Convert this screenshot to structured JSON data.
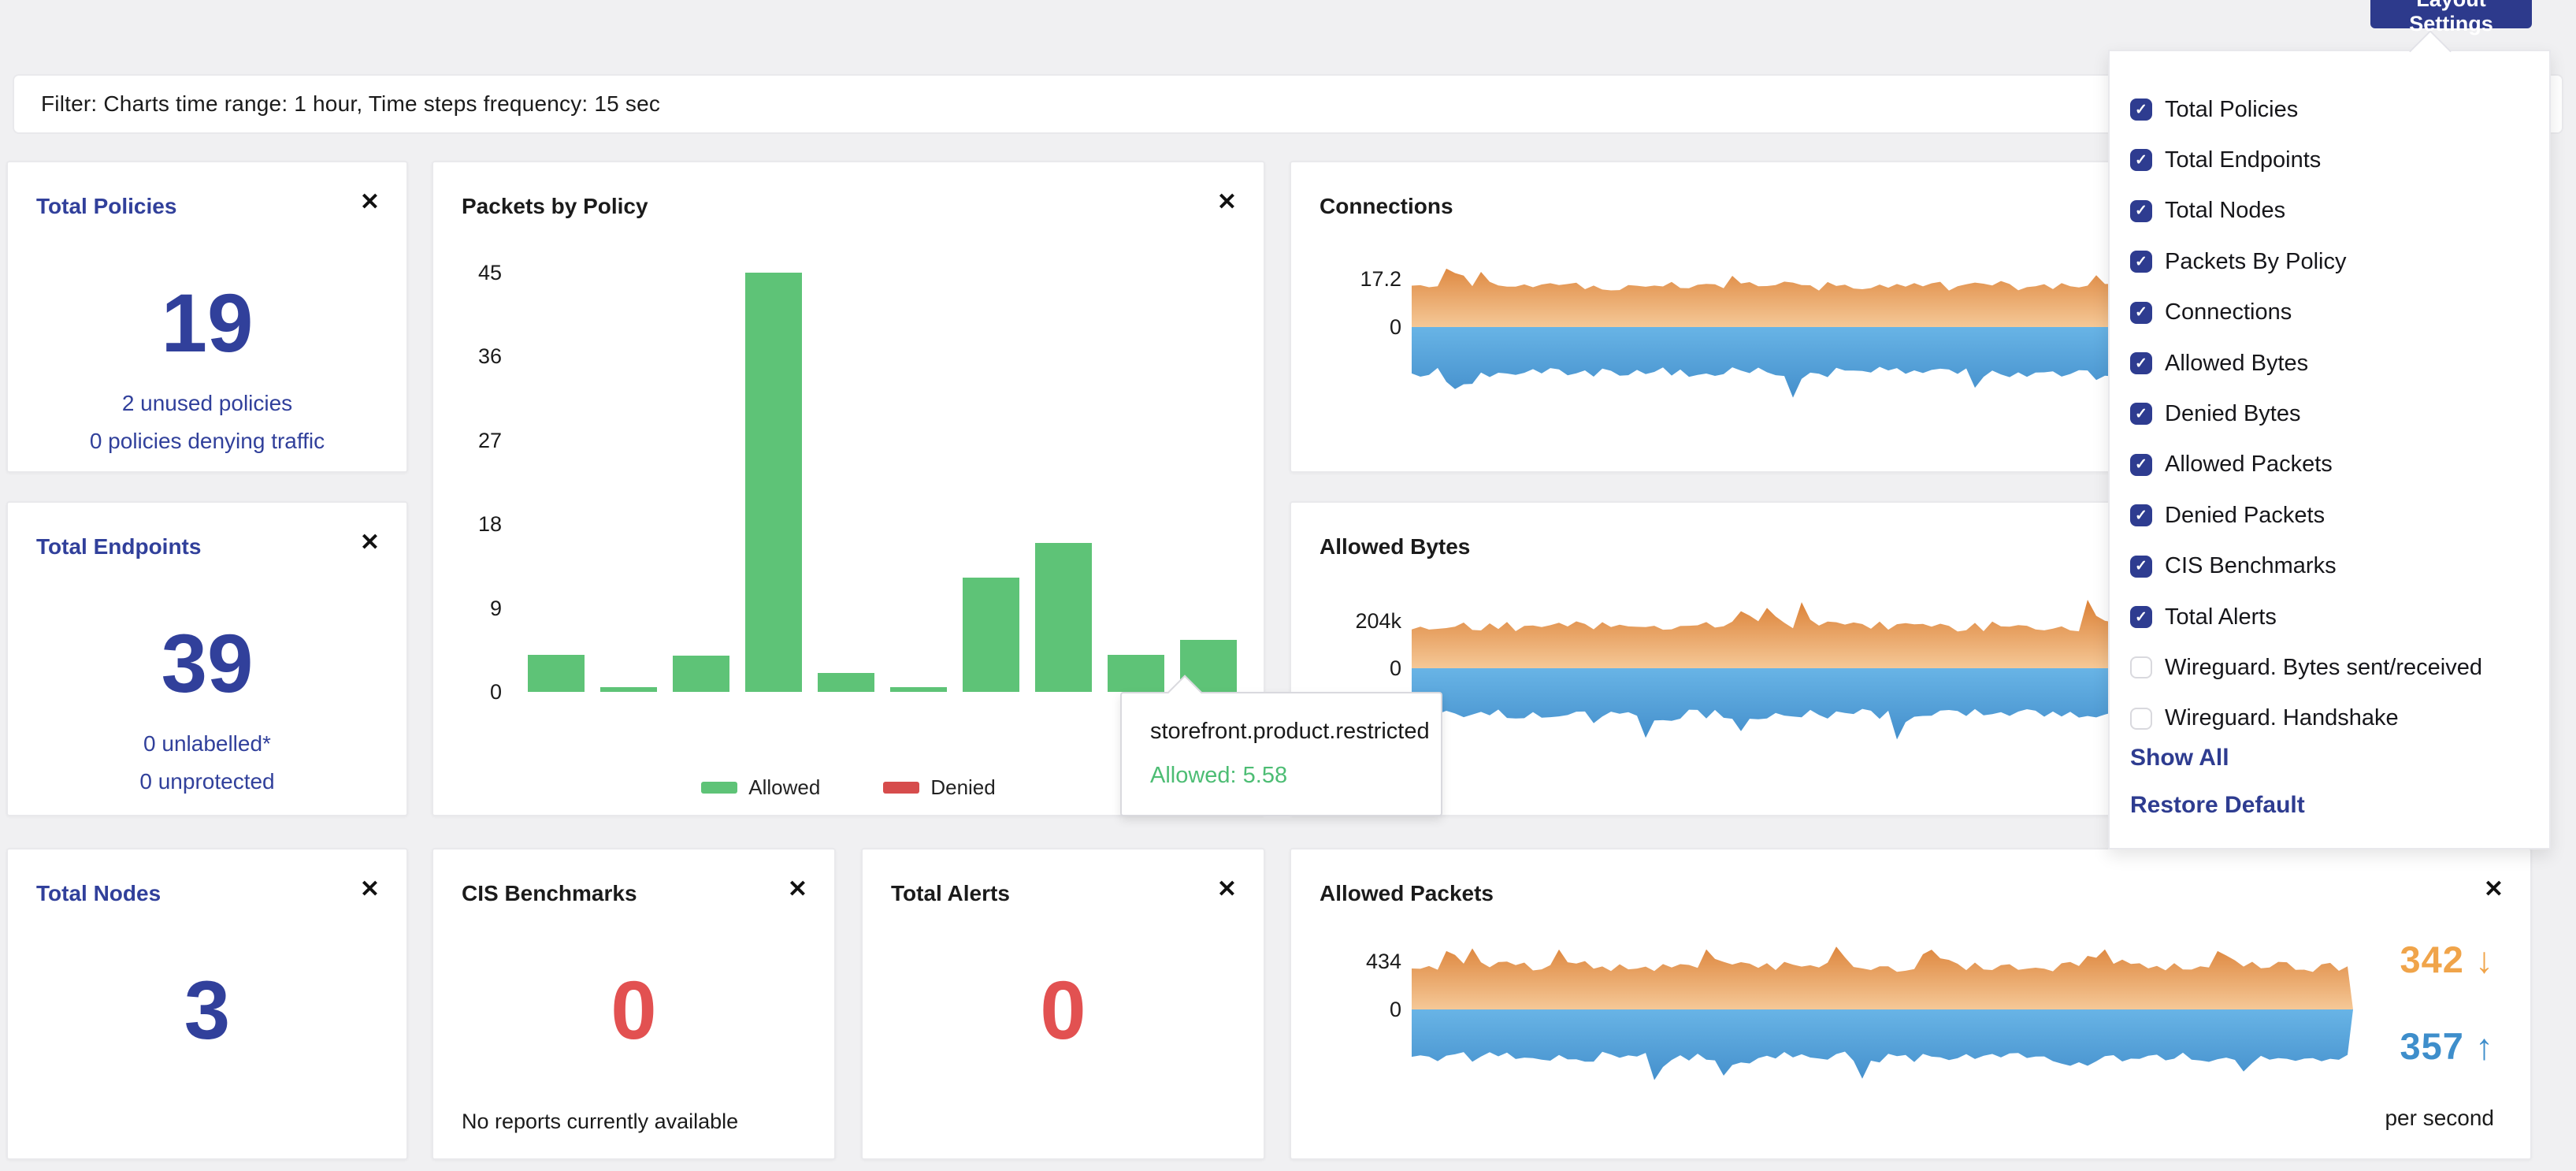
{
  "toolbar": {
    "layout_settings_label": "Layout Settings"
  },
  "filter_bar": {
    "text": "Filter: Charts time range: 1 hour, Time steps frequency: 15 sec"
  },
  "layout_menu": {
    "items": [
      {
        "label": "Total Policies",
        "checked": true
      },
      {
        "label": "Total Endpoints",
        "checked": true
      },
      {
        "label": "Total Nodes",
        "checked": true
      },
      {
        "label": "Packets By Policy",
        "checked": true
      },
      {
        "label": "Connections",
        "checked": true
      },
      {
        "label": "Allowed Bytes",
        "checked": true
      },
      {
        "label": "Denied Bytes",
        "checked": true
      },
      {
        "label": "Allowed Packets",
        "checked": true
      },
      {
        "label": "Denied Packets",
        "checked": true
      },
      {
        "label": "CIS Benchmarks",
        "checked": true
      },
      {
        "label": "Total Alerts",
        "checked": true
      },
      {
        "label": "Wireguard. Bytes sent/received",
        "checked": false
      },
      {
        "label": "Wireguard. Handshake",
        "checked": false
      }
    ],
    "show_all_label": "Show All",
    "restore_default_label": "Restore Default"
  },
  "cards": {
    "total_policies": {
      "title": "Total Policies",
      "value": "19",
      "sub1": "2 unused policies",
      "sub2": "0 policies denying traffic"
    },
    "total_endpoints": {
      "title": "Total Endpoints",
      "value": "39",
      "sub1": "0 unlabelled*",
      "sub2": "0 unprotected"
    },
    "total_nodes": {
      "title": "Total Nodes",
      "value": "3"
    },
    "cis_benchmarks": {
      "title": "CIS Benchmarks",
      "value": "0",
      "note": "No reports currently available"
    },
    "total_alerts": {
      "title": "Total Alerts",
      "value": "0"
    },
    "packets_by_policy": {
      "title": "Packets by Policy",
      "legend": [
        {
          "label": "Allowed",
          "color": "#5ec377"
        },
        {
          "label": "Denied",
          "color": "#d64c4c"
        }
      ]
    },
    "connections": {
      "title": "Connections",
      "ymax_label": "17.2",
      "ymin_label": "0"
    },
    "allowed_bytes": {
      "title": "Allowed Bytes",
      "ymax_label": "204k",
      "ymin_label": "0"
    },
    "allowed_packets": {
      "title": "Allowed Packets",
      "ymax_label": "434",
      "ymin_label": "0",
      "received": "342",
      "sent": "357",
      "received_arrow": "↓",
      "sent_arrow": "↑",
      "unit": "per second"
    }
  },
  "tooltip": {
    "title": "storefront.product.restricted",
    "value_label": "Allowed: 5.58",
    "value_color": "#4dbd74"
  },
  "colors": {
    "navy": "#2e3c90",
    "title_navy": "#31409b",
    "red": "#e25151",
    "allowed_green": "#5ec377",
    "denied_red": "#d64c4c",
    "orange_dark": "#dd853c",
    "orange_light": "#f5c897",
    "blue_light": "#68b4e6",
    "blue_dark": "#4691cd",
    "rate_orange": "#f0a44a",
    "rate_blue": "#3e8ecb"
  },
  "chart_data": [
    {
      "id": "packets_by_policy",
      "type": "bar",
      "title": "Packets by Policy",
      "categories": [
        null,
        null,
        null,
        null,
        null,
        null,
        null,
        null,
        null,
        "storefront.product.restricted"
      ],
      "series": [
        {
          "name": "Allowed",
          "color": "#5ec377",
          "values": [
            4,
            0.5,
            3.9,
            45,
            2,
            0.5,
            12.3,
            16,
            4,
            5.58
          ]
        },
        {
          "name": "Denied",
          "color": "#d64c4c",
          "values": [
            0,
            0,
            0,
            0,
            0,
            0,
            0,
            0,
            0,
            0
          ]
        }
      ],
      "yticks": [
        45,
        36,
        27,
        18,
        9,
        0
      ],
      "ylim": [
        0,
        45
      ],
      "hovered_index": 9,
      "hovered_value": 5.58,
      "legend_position": "bottom",
      "grid": false
    },
    {
      "id": "connections",
      "type": "area-stream",
      "title": "Connections",
      "yticks_labels": [
        "17.2",
        "0"
      ],
      "series": [
        {
          "name": "above-axis band",
          "color_top": "#dd853c",
          "color_bottom": "#f5c897",
          "approx_peak": 17.2
        },
        {
          "name": "below-axis band",
          "color_top": "#68b4e6",
          "color_bottom": "#4691cd"
        }
      ],
      "grid": false
    },
    {
      "id": "allowed_bytes",
      "type": "area-stream",
      "title": "Allowed Bytes",
      "yticks_labels": [
        "204k",
        "0"
      ],
      "series": [
        {
          "name": "above-axis band",
          "color_top": "#dd853c",
          "color_bottom": "#f5c897",
          "approx_peak": "204k"
        },
        {
          "name": "below-axis band",
          "color_top": "#68b4e6",
          "color_bottom": "#4691cd"
        }
      ],
      "grid": false
    },
    {
      "id": "allowed_packets",
      "type": "area-stream",
      "title": "Allowed Packets",
      "yticks_labels": [
        "434",
        "0"
      ],
      "series": [
        {
          "name": "received per second",
          "value": 342,
          "color_top": "#dd853c",
          "color_bottom": "#f5c897"
        },
        {
          "name": "sent per second",
          "value": 357,
          "color_top": "#68b4e6",
          "color_bottom": "#4691cd"
        }
      ],
      "unit": "per second",
      "grid": false
    }
  ]
}
